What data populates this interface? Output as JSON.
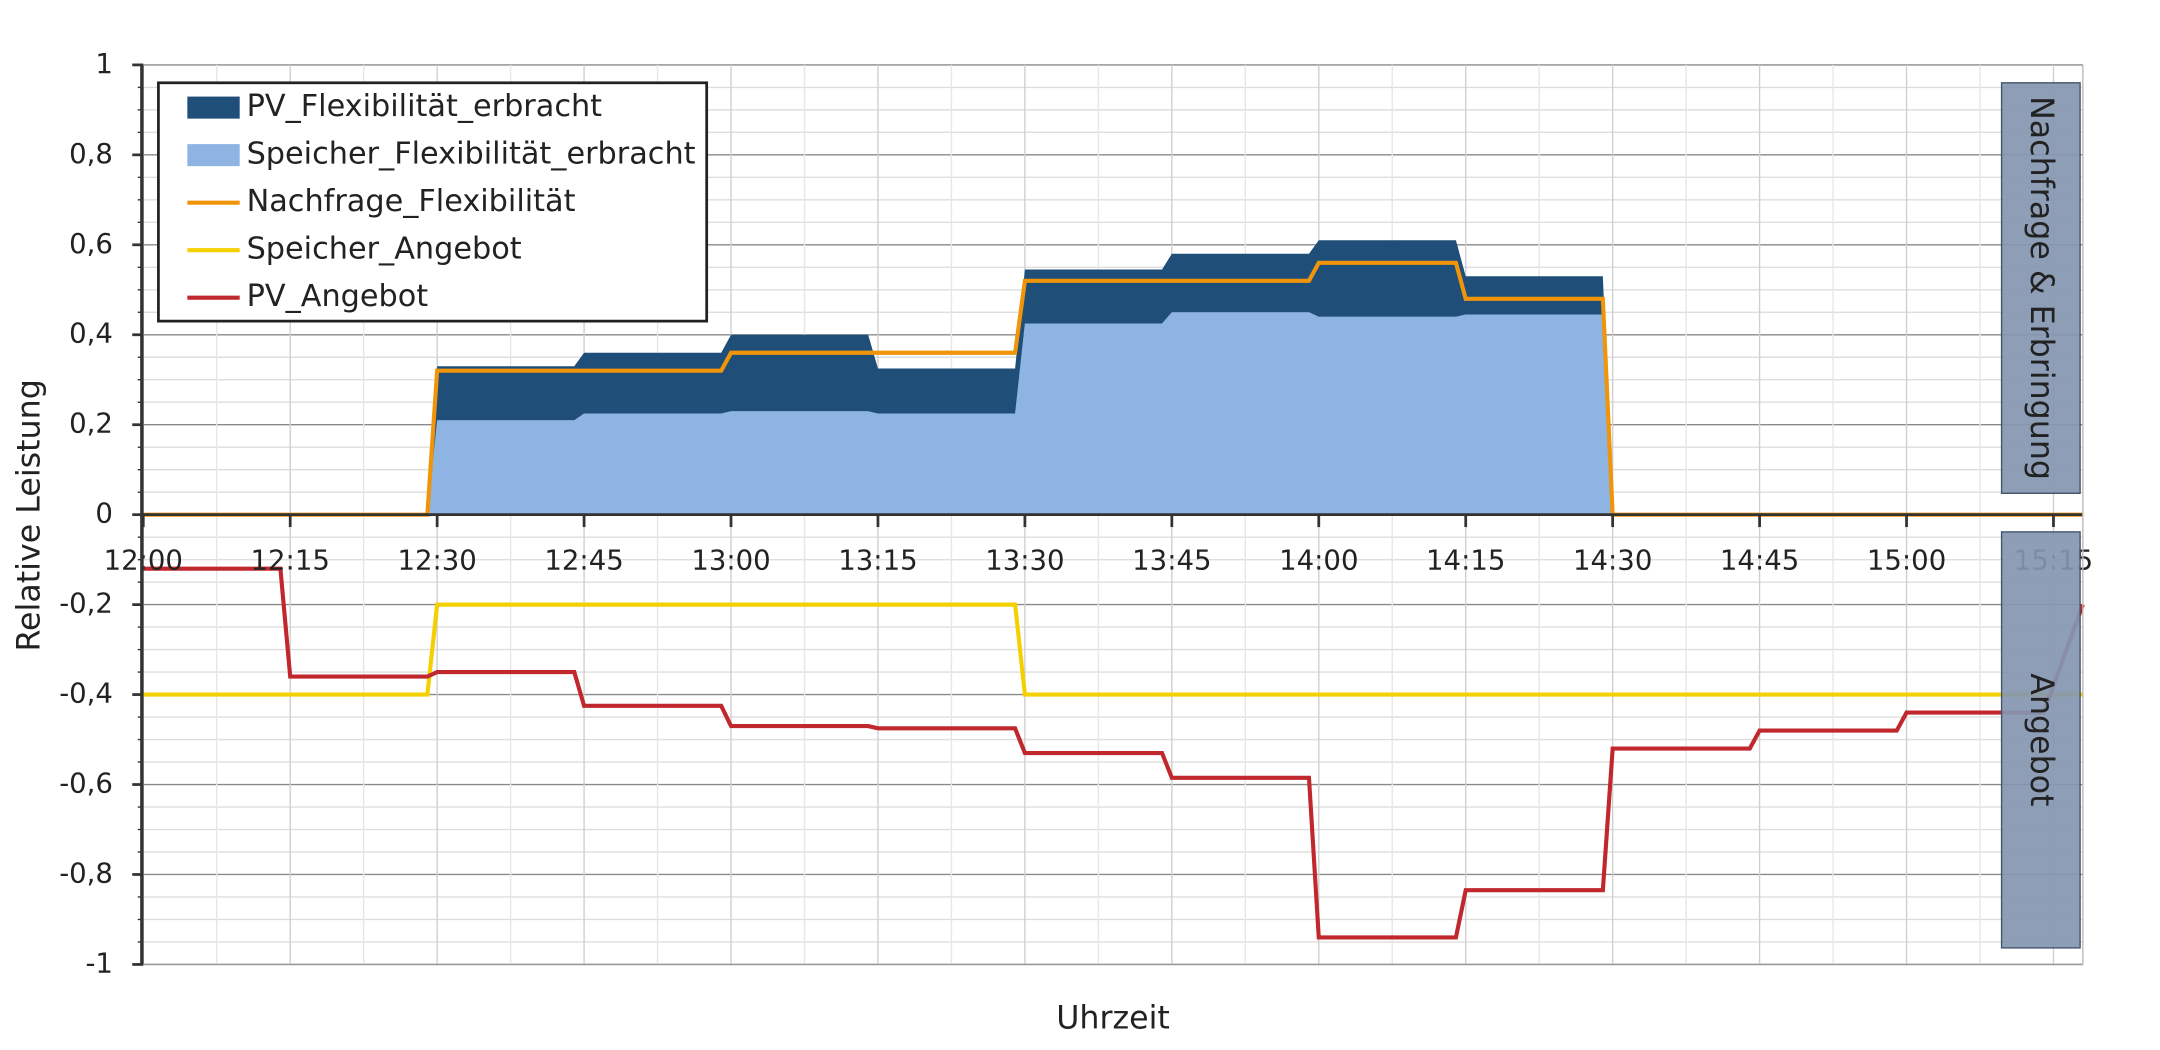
{
  "chart_data": {
    "type": "area-line",
    "x_label": "Uhrzeit",
    "y_label": "Relative Leistung",
    "x": [
      "12:00",
      "12:14",
      "12:15",
      "12:29",
      "12:30",
      "12:44",
      "12:45",
      "12:59",
      "13:00",
      "13:14",
      "13:15",
      "13:29",
      "13:30",
      "13:44",
      "13:45",
      "13:59",
      "14:00",
      "14:14",
      "14:15",
      "14:29",
      "14:30",
      "14:44",
      "14:45",
      "14:59",
      "15:00",
      "15:14",
      "15:18"
    ],
    "series": [
      {
        "name": "PV_Flexibilität_erbracht",
        "kind": "area",
        "color": "#1f4e79",
        "values": [
          0,
          0,
          0,
          0,
          0.12,
          0.12,
          0.135,
          0.135,
          0.17,
          0.17,
          0.1,
          0.1,
          0.12,
          0.12,
          0.13,
          0.13,
          0.17,
          0.17,
          0.085,
          0.085,
          0,
          0,
          0,
          0,
          0,
          0,
          0
        ]
      },
      {
        "name": "Speicher_Flexibilität_erbracht",
        "kind": "area",
        "color": "#8db4e2",
        "values": [
          0,
          0,
          0,
          0,
          0.21,
          0.21,
          0.225,
          0.225,
          0.23,
          0.23,
          0.225,
          0.225,
          0.425,
          0.425,
          0.45,
          0.45,
          0.44,
          0.44,
          0.445,
          0.445,
          0,
          0,
          0,
          0,
          0,
          0,
          0
        ]
      },
      {
        "name": "Nachfrage_Flexibilität",
        "kind": "line",
        "color": "#f0940a",
        "values": [
          0,
          0,
          0,
          0,
          0.32,
          0.32,
          0.32,
          0.32,
          0.36,
          0.36,
          0.36,
          0.36,
          0.52,
          0.52,
          0.52,
          0.52,
          0.56,
          0.56,
          0.48,
          0.48,
          0,
          0,
          0,
          0,
          0,
          0,
          0
        ]
      },
      {
        "name": "Speicher_Angebot",
        "kind": "line",
        "color": "#f5d000",
        "values": [
          -0.4,
          -0.4,
          -0.4,
          -0.4,
          -0.2,
          -0.2,
          -0.2,
          -0.2,
          -0.2,
          -0.2,
          -0.2,
          -0.2,
          -0.4,
          -0.4,
          -0.4,
          -0.4,
          -0.4,
          -0.4,
          -0.4,
          -0.4,
          -0.4,
          -0.4,
          -0.4,
          -0.4,
          -0.4,
          -0.4,
          -0.4
        ]
      },
      {
        "name": "PV_Angebot",
        "kind": "line",
        "color": "#c0282d",
        "values": [
          -0.12,
          -0.12,
          -0.36,
          -0.36,
          -0.35,
          -0.35,
          -0.425,
          -0.425,
          -0.47,
          -0.47,
          -0.475,
          -0.475,
          -0.53,
          -0.53,
          -0.585,
          -0.585,
          -0.94,
          -0.94,
          -0.835,
          -0.835,
          -0.52,
          -0.52,
          -0.48,
          -0.48,
          -0.44,
          -0.44,
          -0.2
        ]
      }
    ],
    "xlim": [
      "12:00",
      "15:18"
    ],
    "xticks": [
      "12:00",
      "12:15",
      "12:30",
      "12:45",
      "13:00",
      "13:15",
      "13:30",
      "13:45",
      "14:00",
      "14:15",
      "14:30",
      "14:45",
      "15:00",
      "15:15"
    ],
    "ylim": [
      -1,
      1
    ],
    "yticks": [
      {
        "value": -1,
        "label": "-1"
      },
      {
        "value": -0.8,
        "label": "-0,8"
      },
      {
        "value": -0.6,
        "label": "-0,6"
      },
      {
        "value": -0.4,
        "label": "-0,4"
      },
      {
        "value": -0.2,
        "label": "-0,2"
      },
      0,
      {
        "value": 0.2,
        "label": "0,2"
      },
      {
        "value": 0.4,
        "label": "0,4"
      },
      {
        "value": 0.6,
        "label": "0,6"
      },
      {
        "value": 0.8,
        "label": "0,8"
      },
      1
    ],
    "grid": true,
    "legend": "top-left",
    "annotations": [
      "Nachfrage & Erbringung",
      "Angebot"
    ]
  }
}
